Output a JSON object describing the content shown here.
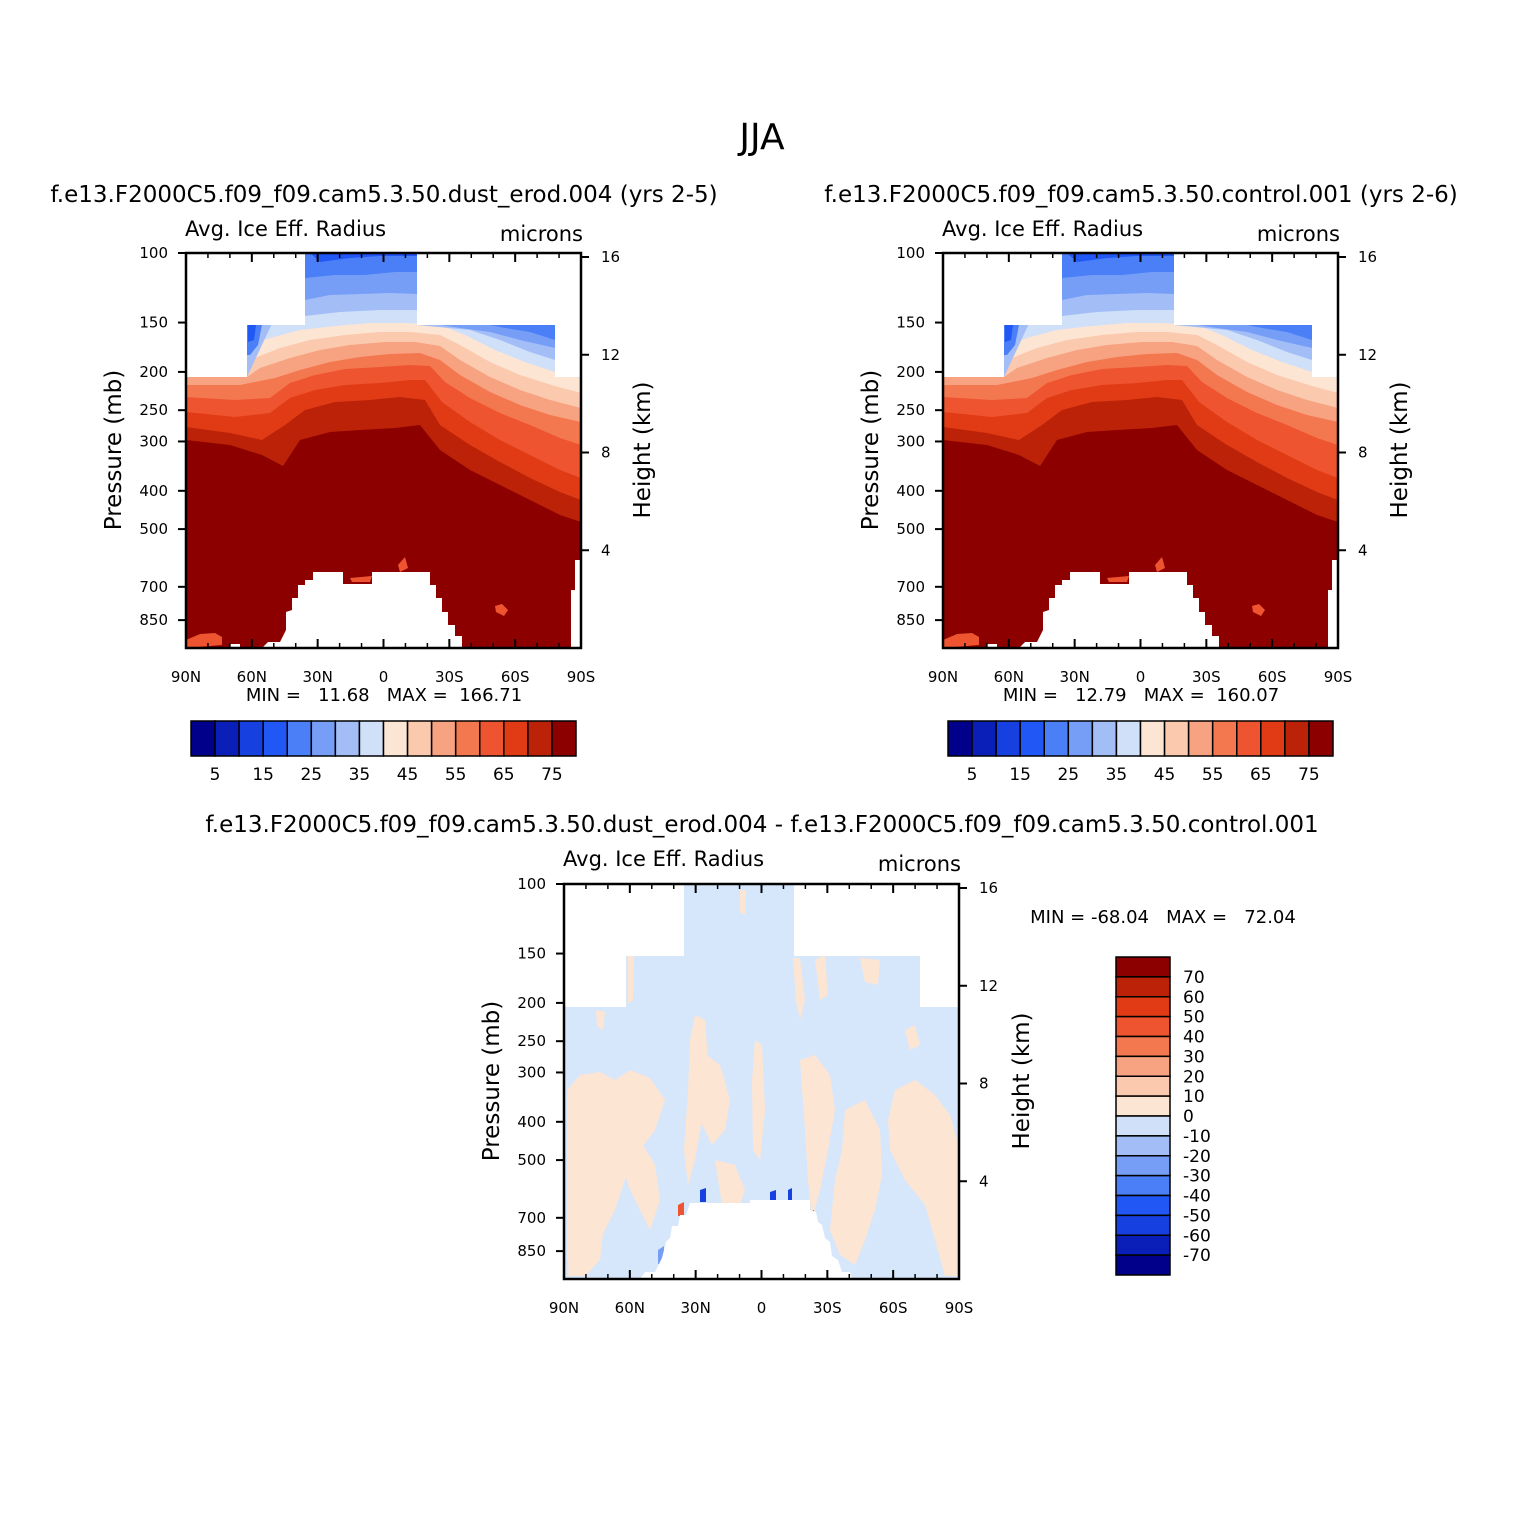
{
  "figure_title": "JJA",
  "chart_data": [
    {
      "type": "contour",
      "title": "f.e13.F2000C5.f09_f09.cam5.3.50.dust_erod.004 (yrs 2-5)",
      "left_label": "Avg. Ice Eff. Radius",
      "right_label": "microns",
      "xlabel": "",
      "ylabel": "Pressure (mb)",
      "y2label": "Height (km)",
      "x_ticks": [
        "90N",
        "60N",
        "30N",
        "0",
        "30S",
        "60S",
        "90S"
      ],
      "y_ticks": [
        "100",
        "150",
        "200",
        "250",
        "300",
        "400",
        "500",
        "700",
        "850"
      ],
      "y2_ticks": [
        "16",
        "12",
        "8",
        "4"
      ],
      "xlim": [
        90,
        -90
      ],
      "ylim": [
        1000,
        100
      ],
      "y_scale": "log",
      "stats": "MIN =   11.68   MAX =  166.71",
      "min": 11.68,
      "max": 166.71,
      "colorbar_orientation": "horizontal",
      "colorbar_labels": [
        "5",
        "15",
        "25",
        "35",
        "45",
        "55",
        "65",
        "75"
      ],
      "levels": [
        5,
        10,
        15,
        20,
        25,
        30,
        35,
        40,
        45,
        50,
        55,
        60,
        65,
        70,
        75
      ],
      "colors": [
        "#00008b",
        "#0a1fb8",
        "#1640e0",
        "#2157f5",
        "#4a7ff7",
        "#769ef7",
        "#a3bef7",
        "#cfe0f8",
        "#fde5d4",
        "#fbc9ad",
        "#f7a281",
        "#f4784f",
        "#ee5430",
        "#e13b15",
        "#bc2208",
        "#8c0000"
      ]
    },
    {
      "type": "contour",
      "title": "f.e13.F2000C5.f09_f09.cam5.3.50.control.001 (yrs 2-6)",
      "left_label": "Avg. Ice Eff. Radius",
      "right_label": "microns",
      "xlabel": "",
      "ylabel": "Pressure (mb)",
      "y2label": "Height (km)",
      "x_ticks": [
        "90N",
        "60N",
        "30N",
        "0",
        "30S",
        "60S",
        "90S"
      ],
      "y_ticks": [
        "100",
        "150",
        "200",
        "250",
        "300",
        "400",
        "500",
        "700",
        "850"
      ],
      "y2_ticks": [
        "16",
        "12",
        "8",
        "4"
      ],
      "xlim": [
        90,
        -90
      ],
      "ylim": [
        1000,
        100
      ],
      "y_scale": "log",
      "stats": "MIN =   12.79   MAX =  160.07",
      "min": 12.79,
      "max": 160.07,
      "colorbar_orientation": "horizontal",
      "colorbar_labels": [
        "5",
        "15",
        "25",
        "35",
        "45",
        "55",
        "65",
        "75"
      ],
      "levels": [
        5,
        10,
        15,
        20,
        25,
        30,
        35,
        40,
        45,
        50,
        55,
        60,
        65,
        70,
        75
      ],
      "colors": [
        "#00008b",
        "#0a1fb8",
        "#1640e0",
        "#2157f5",
        "#4a7ff7",
        "#769ef7",
        "#a3bef7",
        "#cfe0f8",
        "#fde5d4",
        "#fbc9ad",
        "#f7a281",
        "#f4784f",
        "#ee5430",
        "#e13b15",
        "#bc2208",
        "#8c0000"
      ]
    },
    {
      "type": "contour",
      "title": "f.e13.F2000C5.f09_f09.cam5.3.50.dust_erod.004 - f.e13.F2000C5.f09_f09.cam5.3.50.control.001",
      "left_label": "Avg. Ice Eff. Radius",
      "right_label": "microns",
      "xlabel": "",
      "ylabel": "Pressure (mb)",
      "y2label": "Height (km)",
      "x_ticks": [
        "90N",
        "60N",
        "30N",
        "0",
        "30S",
        "60S",
        "90S"
      ],
      "y_ticks": [
        "100",
        "150",
        "200",
        "250",
        "300",
        "400",
        "500",
        "700",
        "850"
      ],
      "y2_ticks": [
        "16",
        "12",
        "8",
        "4"
      ],
      "xlim": [
        90,
        -90
      ],
      "ylim": [
        1000,
        100
      ],
      "y_scale": "log",
      "stats": "MIN = -68.04   MAX =   72.04",
      "min": -68.04,
      "max": 72.04,
      "colorbar_orientation": "vertical",
      "colorbar_labels": [
        "70",
        "60",
        "50",
        "40",
        "30",
        "20",
        "10",
        "0",
        "-10",
        "-20",
        "-30",
        "-40",
        "-50",
        "-60",
        "-70"
      ],
      "levels": [
        -70,
        -60,
        -50,
        -40,
        -30,
        -20,
        -10,
        0,
        10,
        20,
        30,
        40,
        50,
        60,
        70
      ],
      "colors": [
        "#00008b",
        "#0a1fb8",
        "#1640e0",
        "#2157f5",
        "#4a7ff7",
        "#769ef7",
        "#a3bef7",
        "#cfe0f8",
        "#fde5d4",
        "#fbc9ad",
        "#f7a281",
        "#f4784f",
        "#ee5430",
        "#e13b15",
        "#bc2208",
        "#8c0000"
      ]
    }
  ]
}
